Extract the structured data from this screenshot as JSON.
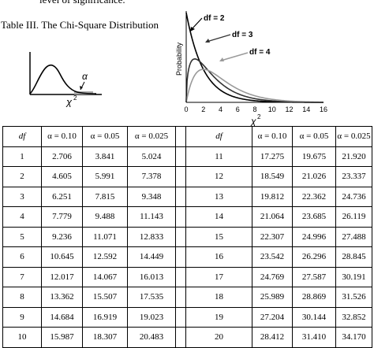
{
  "top_text": "level of significance.",
  "caption": "Table III.  The Chi-Square Distribution",
  "thumbnail": {
    "alpha_label": "α",
    "chi_label": "χ",
    "chi_sup": "2"
  },
  "chart_data": {
    "type": "line",
    "ylabel": "Probability",
    "xlabel": "χ",
    "xlabel_sup": "2",
    "xlim": [
      0,
      16
    ],
    "xticks": [
      "0",
      "2",
      "4",
      "6",
      "8",
      "10",
      "12",
      "14",
      "16"
    ],
    "series": [
      {
        "name": "df = 2",
        "color": "#000000"
      },
      {
        "name": "df = 3",
        "color": "#333333"
      },
      {
        "name": "df = 4",
        "color": "#9a9a9a"
      }
    ]
  },
  "table": {
    "headers_left": [
      "df",
      "α = 0.10",
      "α = 0.05",
      "α = 0.025"
    ],
    "headers_right": [
      "df",
      "α = 0.10",
      "α = 0.05",
      "α = 0.025"
    ],
    "rows": [
      [
        "1",
        "2.706",
        "3.841",
        "5.024",
        "11",
        "17.275",
        "19.675",
        "21.920"
      ],
      [
        "2",
        "4.605",
        "5.991",
        "7.378",
        "12",
        "18.549",
        "21.026",
        "23.337"
      ],
      [
        "3",
        "6.251",
        "7.815",
        "9.348",
        "13",
        "19.812",
        "22.362",
        "24.736"
      ],
      [
        "4",
        "7.779",
        "9.488",
        "11.143",
        "14",
        "21.064",
        "23.685",
        "26.119"
      ],
      [
        "5",
        "9.236",
        "11.071",
        "12.833",
        "15",
        "22.307",
        "24.996",
        "27.488"
      ],
      [
        "6",
        "10.645",
        "12.592",
        "14.449",
        "16",
        "23.542",
        "26.296",
        "28.845"
      ],
      [
        "7",
        "12.017",
        "14.067",
        "16.013",
        "17",
        "24.769",
        "27.587",
        "30.191"
      ],
      [
        "8",
        "13.362",
        "15.507",
        "17.535",
        "18",
        "25.989",
        "28.869",
        "31.526"
      ],
      [
        "9",
        "14.684",
        "16.919",
        "19.023",
        "19",
        "27.204",
        "30.144",
        "32.852"
      ],
      [
        "10",
        "15.987",
        "18.307",
        "20.483",
        "20",
        "28.412",
        "31.410",
        "34.170"
      ]
    ]
  }
}
